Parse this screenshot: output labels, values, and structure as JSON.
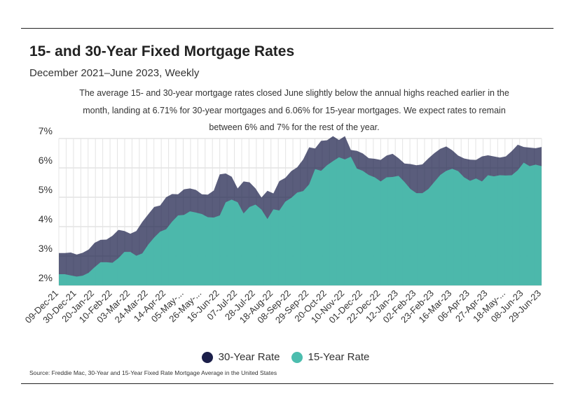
{
  "header": {
    "title": "15- and 30-Year Fixed Mortgage Rates",
    "subtitle": "December 2021–June 2023, Weekly",
    "note": "The average 15- and 30-year mortgage rates closed June slightly below the annual highs reached earlier in the month, landing at 6.71% for 30-year mortgages and 6.06% for 15-year mortgages. We expect rates to remain between 6% and 7% for the rest of the year."
  },
  "legend": {
    "items": [
      {
        "label": "30-Year Rate",
        "color": "#1b1f4a"
      },
      {
        "label": "15-Year Rate",
        "color": "#4cbdae"
      }
    ]
  },
  "source": "Source:  Freddie Mac, 30-Year  and 15-Year Fixed Rate Mortgage Average in the United States",
  "chart_data": {
    "type": "area",
    "x_tick_labels": [
      "09-Dec-21",
      "30-Dec-21",
      "20-Jan-22",
      "10-Feb-22",
      "03-Mar-22",
      "24-Mar-22",
      "14-Apr-22",
      "05-May-...",
      "26-May-...",
      "16-Jun-22",
      "07-Jul-22",
      "28-Jul-22",
      "18-Aug-22",
      "08-Sep-22",
      "29-Sep-22",
      "20-Oct-22",
      "10-Nov-22",
      "01-Dec-22",
      "22-Dec-22",
      "12-Jan-23",
      "02-Feb-23",
      "23-Feb-23",
      "16-Mar-23",
      "06-Apr-23",
      "27-Apr-23",
      "18-May-...",
      "08-Jun-23",
      "29-Jun-23"
    ],
    "y_tick_labels": [
      "2%",
      "3%",
      "4%",
      "5%",
      "6%",
      "7%"
    ],
    "ylim": [
      2,
      7
    ],
    "grid": true,
    "legend_position": "bottom",
    "series": [
      {
        "name": "30-Year Rate",
        "color": "#1b1f4a",
        "values": [
          3.1,
          3.1,
          3.12,
          3.05,
          3.11,
          3.22,
          3.45,
          3.55,
          3.56,
          3.69,
          3.89,
          3.85,
          3.76,
          3.85,
          4.16,
          4.42,
          4.67,
          4.72,
          5.0,
          5.11,
          5.1,
          5.27,
          5.3,
          5.25,
          5.1,
          5.09,
          5.23,
          5.78,
          5.81,
          5.7,
          5.3,
          5.54,
          5.51,
          5.3,
          4.99,
          5.22,
          5.13,
          5.55,
          5.66,
          5.89,
          6.02,
          6.29,
          6.7,
          6.66,
          6.92,
          6.94,
          7.08,
          6.95,
          7.08,
          6.61,
          6.58,
          6.49,
          6.33,
          6.31,
          6.27,
          6.42,
          6.48,
          6.33,
          6.15,
          6.13,
          6.09,
          6.12,
          6.32,
          6.5,
          6.65,
          6.73,
          6.6,
          6.42,
          6.32,
          6.28,
          6.27,
          6.39,
          6.43,
          6.39,
          6.35,
          6.39,
          6.57,
          6.79,
          6.71,
          6.69,
          6.67,
          6.71
        ]
      },
      {
        "name": "15-Year Rate",
        "color": "#4cbdae",
        "values": [
          2.38,
          2.38,
          2.34,
          2.3,
          2.33,
          2.43,
          2.62,
          2.79,
          2.79,
          2.77,
          2.93,
          3.14,
          3.14,
          3.01,
          3.09,
          3.39,
          3.63,
          3.83,
          3.91,
          4.17,
          4.38,
          4.4,
          4.52,
          4.48,
          4.43,
          4.32,
          4.31,
          4.38,
          4.83,
          4.92,
          4.83,
          4.45,
          4.67,
          4.75,
          4.58,
          4.26,
          4.59,
          4.55,
          4.85,
          4.98,
          5.16,
          5.21,
          5.44,
          5.96,
          5.9,
          6.09,
          6.23,
          6.36,
          6.29,
          6.38,
          5.98,
          5.9,
          5.76,
          5.68,
          5.54,
          5.68,
          5.69,
          5.73,
          5.52,
          5.28,
          5.14,
          5.14,
          5.28,
          5.52,
          5.76,
          5.9,
          5.97,
          5.89,
          5.68,
          5.56,
          5.64,
          5.54,
          5.75,
          5.71,
          5.75,
          5.74,
          5.75,
          5.92,
          6.18,
          6.06,
          6.11,
          6.06
        ]
      }
    ]
  }
}
